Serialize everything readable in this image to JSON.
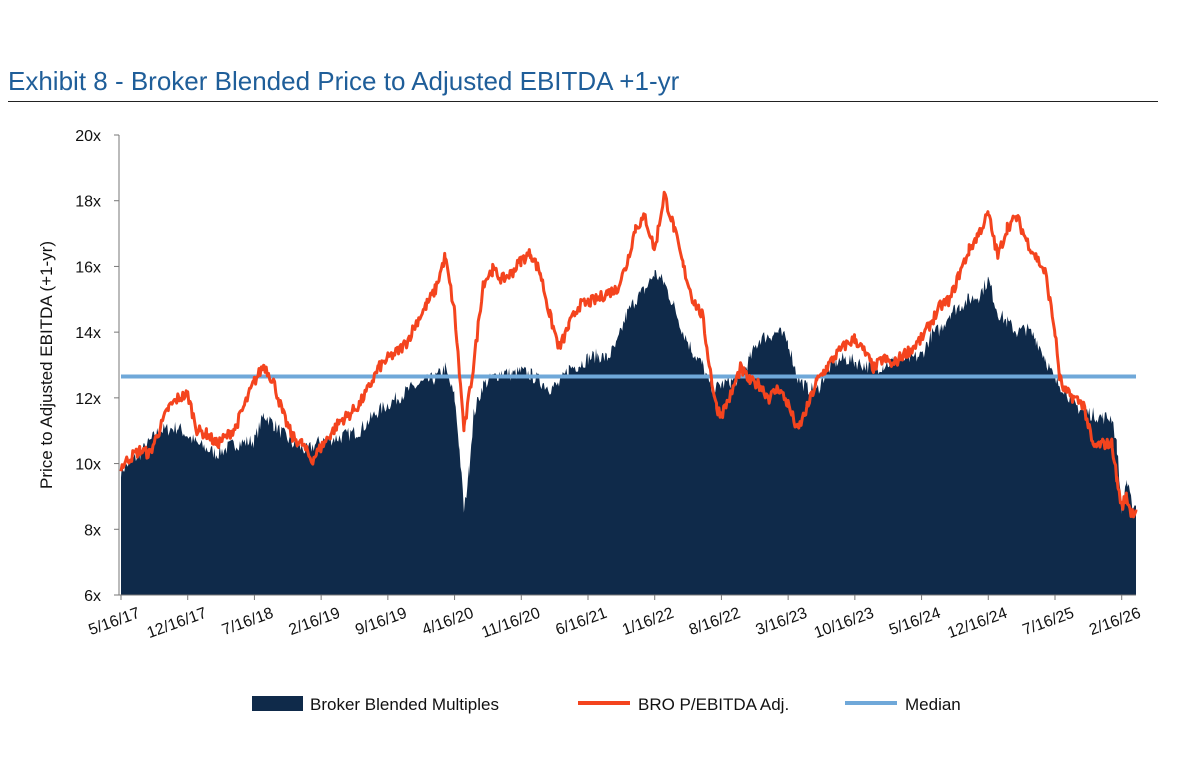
{
  "title": "Exhibit 8 - Broker Blended Price to Adjusted EBITDA +1-yr",
  "chart_data": {
    "type": "area",
    "ylabel": "Price to Adjusted EBITDA (+1-yr)",
    "ylim": [
      6,
      20
    ],
    "ytick_labels": [
      "6x",
      "8x",
      "10x",
      "12x",
      "14x",
      "16x",
      "18x",
      "20x"
    ],
    "ytick_values": [
      6,
      8,
      10,
      12,
      14,
      16,
      18,
      20
    ],
    "xtick_labels": [
      "5/16/17",
      "12/16/17",
      "7/16/18",
      "2/16/19",
      "9/16/19",
      "4/16/20",
      "11/16/20",
      "6/16/21",
      "1/16/22",
      "8/16/22",
      "3/16/23",
      "10/16/23",
      "5/16/24",
      "12/16/24",
      "7/16/25",
      "2/16/26"
    ],
    "x_months_from_start": [
      0,
      7,
      14,
      21,
      28,
      35,
      42,
      49,
      56,
      63,
      70,
      77,
      84,
      91,
      98,
      105
    ],
    "x_range_months": [
      0,
      106.5
    ],
    "series": [
      {
        "name": "Broker Blended Multiples",
        "kind": "area",
        "color": "#0f2a4a",
        "points": [
          [
            0,
            9.8
          ],
          [
            2,
            10.3
          ],
          [
            4,
            11.0
          ],
          [
            6,
            11.1
          ],
          [
            8,
            10.6
          ],
          [
            10,
            10.3
          ],
          [
            12,
            10.6
          ],
          [
            14,
            10.7
          ],
          [
            15,
            11.5
          ],
          [
            16,
            11.2
          ],
          [
            18,
            10.6
          ],
          [
            19.5,
            10.4
          ],
          [
            21,
            10.7
          ],
          [
            23,
            10.8
          ],
          [
            25,
            11.0
          ],
          [
            27,
            11.6
          ],
          [
            29,
            12.0
          ],
          [
            30.5,
            12.3
          ],
          [
            32,
            12.5
          ],
          [
            33,
            12.6
          ],
          [
            34,
            12.9
          ],
          [
            35,
            12.0
          ],
          [
            35.5,
            10.5
          ],
          [
            36,
            8.5
          ],
          [
            36.5,
            9.8
          ],
          [
            37,
            11.5
          ],
          [
            38,
            12.4
          ],
          [
            39,
            12.6
          ],
          [
            40,
            12.8
          ],
          [
            41,
            12.7
          ],
          [
            42,
            12.8
          ],
          [
            43,
            12.7
          ],
          [
            44,
            12.5
          ],
          [
            45,
            12.3
          ],
          [
            46,
            12.4
          ],
          [
            47,
            12.9
          ],
          [
            48,
            13.0
          ],
          [
            49,
            13.2
          ],
          [
            50,
            13.3
          ],
          [
            51,
            13.2
          ],
          [
            52,
            13.6
          ],
          [
            53,
            14.5
          ],
          [
            54,
            15.0
          ],
          [
            55,
            15.3
          ],
          [
            56,
            15.8
          ],
          [
            57,
            15.5
          ],
          [
            58,
            14.8
          ],
          [
            59,
            14.0
          ],
          [
            60,
            13.4
          ],
          [
            61,
            13.0
          ],
          [
            62,
            12.2
          ],
          [
            63,
            12.4
          ],
          [
            64,
            12.5
          ],
          [
            65,
            12.6
          ],
          [
            66,
            13.2
          ],
          [
            67,
            13.8
          ],
          [
            68,
            13.9
          ],
          [
            69,
            14.0
          ],
          [
            70,
            13.7
          ],
          [
            71,
            12.6
          ],
          [
            72,
            12.3
          ],
          [
            73,
            12.2
          ],
          [
            74,
            12.8
          ],
          [
            75,
            13.1
          ],
          [
            76,
            13.2
          ],
          [
            77,
            13.1
          ],
          [
            78,
            13.0
          ],
          [
            79,
            12.9
          ],
          [
            80,
            13.0
          ],
          [
            81,
            13.1
          ],
          [
            82,
            13.2
          ],
          [
            83,
            13.2
          ],
          [
            84,
            13.3
          ],
          [
            85,
            13.9
          ],
          [
            86,
            14.1
          ],
          [
            87,
            14.6
          ],
          [
            88,
            14.8
          ],
          [
            89,
            15.0
          ],
          [
            90,
            15.1
          ],
          [
            91,
            15.6
          ],
          [
            92,
            14.6
          ],
          [
            93,
            14.3
          ],
          [
            94,
            14.0
          ],
          [
            95,
            14.1
          ],
          [
            96,
            13.8
          ],
          [
            97,
            13.2
          ],
          [
            98,
            12.5
          ],
          [
            99,
            12.3
          ],
          [
            100,
            11.8
          ],
          [
            101,
            11.6
          ],
          [
            102,
            11.5
          ],
          [
            103,
            11.4
          ],
          [
            104,
            11.4
          ],
          [
            104.5,
            10.5
          ],
          [
            105,
            8.6
          ],
          [
            105.5,
            9.5
          ],
          [
            106,
            8.8
          ],
          [
            106.5,
            8.7
          ]
        ]
      },
      {
        "name": "BRO P/EBITDA Adj.",
        "kind": "line",
        "color": "#f4441e",
        "points": [
          [
            0,
            9.9
          ],
          [
            1,
            10.2
          ],
          [
            2,
            10.4
          ],
          [
            3,
            10.3
          ],
          [
            4,
            11.0
          ],
          [
            5,
            11.7
          ],
          [
            6,
            12.0
          ],
          [
            7,
            12.1
          ],
          [
            8,
            11.0
          ],
          [
            9,
            10.9
          ],
          [
            10,
            10.6
          ],
          [
            11,
            10.8
          ],
          [
            12,
            11.1
          ],
          [
            13,
            11.8
          ],
          [
            14,
            12.5
          ],
          [
            15,
            13.0
          ],
          [
            16,
            12.5
          ],
          [
            17,
            11.5
          ],
          [
            18,
            10.8
          ],
          [
            19,
            10.6
          ],
          [
            20,
            10.1
          ],
          [
            21,
            10.5
          ],
          [
            22,
            10.9
          ],
          [
            23,
            11.3
          ],
          [
            24,
            11.5
          ],
          [
            25,
            11.8
          ],
          [
            26,
            12.3
          ],
          [
            27,
            12.9
          ],
          [
            28,
            13.2
          ],
          [
            29,
            13.4
          ],
          [
            30,
            13.7
          ],
          [
            31,
            14.3
          ],
          [
            32,
            14.8
          ],
          [
            33,
            15.3
          ],
          [
            34,
            16.3
          ],
          [
            35,
            14.6
          ],
          [
            35.5,
            12.8
          ],
          [
            36,
            11.0
          ],
          [
            37,
            13.0
          ],
          [
            38,
            15.5
          ],
          [
            39,
            15.9
          ],
          [
            40,
            15.6
          ],
          [
            41,
            15.8
          ],
          [
            42,
            16.2
          ],
          [
            43,
            16.4
          ],
          [
            44,
            15.8
          ],
          [
            45,
            14.5
          ],
          [
            46,
            13.5
          ],
          [
            47,
            14.2
          ],
          [
            48,
            14.8
          ],
          [
            49,
            14.9
          ],
          [
            50,
            15.0
          ],
          [
            51,
            15.2
          ],
          [
            52,
            15.3
          ],
          [
            53,
            16.0
          ],
          [
            54,
            17.2
          ],
          [
            55,
            17.5
          ],
          [
            56,
            16.5
          ],
          [
            57,
            18.2
          ],
          [
            58,
            17.2
          ],
          [
            59,
            16.0
          ],
          [
            60,
            15.0
          ],
          [
            61,
            14.5
          ],
          [
            62,
            12.5
          ],
          [
            62.5,
            11.7
          ],
          [
            63,
            11.5
          ],
          [
            64,
            12.1
          ],
          [
            65,
            12.9
          ],
          [
            66,
            12.5
          ],
          [
            67,
            12.4
          ],
          [
            68,
            12.0
          ],
          [
            69,
            12.3
          ],
          [
            70,
            11.8
          ],
          [
            71,
            11.0
          ],
          [
            72,
            11.7
          ],
          [
            73,
            12.5
          ],
          [
            74,
            12.9
          ],
          [
            75,
            13.3
          ],
          [
            76,
            13.6
          ],
          [
            77,
            13.8
          ],
          [
            78,
            13.4
          ],
          [
            79,
            12.9
          ],
          [
            80,
            13.2
          ],
          [
            81,
            13.0
          ],
          [
            82,
            13.3
          ],
          [
            83,
            13.5
          ],
          [
            84,
            13.8
          ],
          [
            85,
            14.3
          ],
          [
            86,
            14.8
          ],
          [
            87,
            15.0
          ],
          [
            88,
            15.8
          ],
          [
            89,
            16.5
          ],
          [
            90,
            17.0
          ],
          [
            91,
            17.6
          ],
          [
            92,
            16.3
          ],
          [
            93,
            17.2
          ],
          [
            94,
            17.5
          ],
          [
            95,
            16.8
          ],
          [
            96,
            16.3
          ],
          [
            97,
            15.8
          ],
          [
            98,
            14.0
          ],
          [
            98.5,
            12.6
          ],
          [
            99,
            12.2
          ],
          [
            100,
            12.0
          ],
          [
            101,
            11.8
          ],
          [
            102,
            10.5
          ],
          [
            103,
            10.6
          ],
          [
            104,
            10.6
          ],
          [
            104.5,
            9.5
          ],
          [
            105,
            8.7
          ],
          [
            105.5,
            9.0
          ],
          [
            106,
            8.5
          ],
          [
            106.5,
            8.6
          ]
        ]
      },
      {
        "name": "Median",
        "kind": "hline",
        "color": "#6fa8d9",
        "value": 12.65
      }
    ],
    "legend_position": "bottom-center"
  }
}
